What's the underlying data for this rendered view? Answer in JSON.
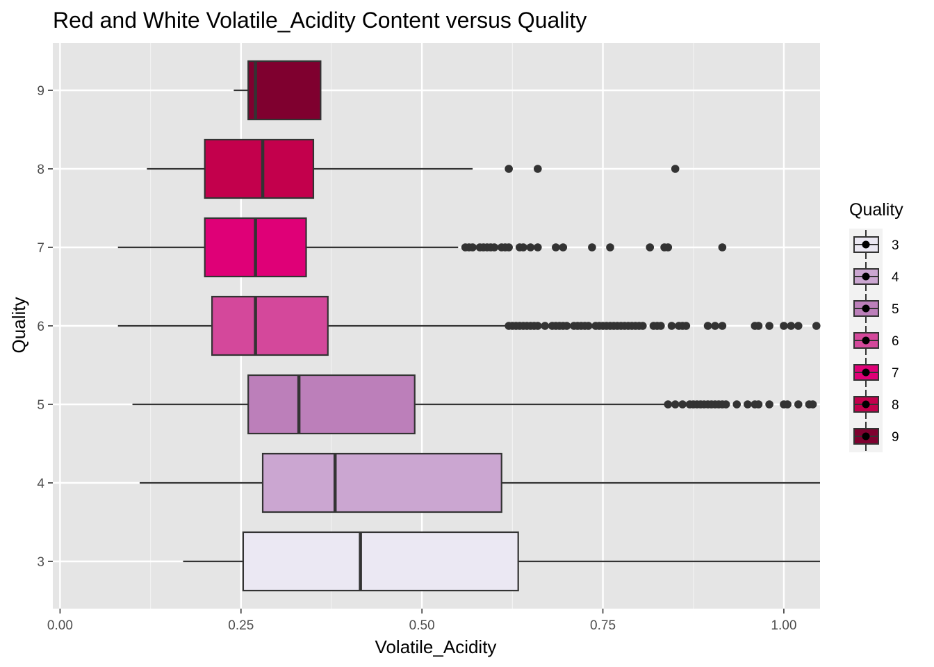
{
  "chart_data": {
    "type": "boxplot",
    "orientation": "horizontal",
    "title": "Red and White Volatile_Acidity Content versus Quality",
    "xlabel": "Volatile_Acidity",
    "ylabel": "Quality",
    "xlim": [
      -0.01,
      1.05
    ],
    "xticks": [
      0.0,
      0.25,
      0.5,
      0.75,
      1.0
    ],
    "xtick_labels": [
      "0.00",
      "0.25",
      "0.50",
      "0.75",
      "1.00"
    ],
    "grid": true,
    "legend": {
      "title": "Quality",
      "position": "right",
      "entries": [
        "3",
        "4",
        "5",
        "6",
        "7",
        "8",
        "9"
      ]
    },
    "categories": [
      "3",
      "4",
      "5",
      "6",
      "7",
      "8",
      "9"
    ],
    "series": [
      {
        "name": "3",
        "color": "#ebe8f3",
        "whisker_low": 0.17,
        "q1": 0.253,
        "median": 0.415,
        "q3": 0.633,
        "whisker_high": 1.05,
        "outliers": []
      },
      {
        "name": "4",
        "color": "#cba6d1",
        "whisker_low": 0.11,
        "q1": 0.28,
        "median": 0.38,
        "q3": 0.61,
        "whisker_high": 1.05,
        "outliers": []
      },
      {
        "name": "5",
        "color": "#bc7fba",
        "whisker_low": 0.1,
        "q1": 0.26,
        "median": 0.33,
        "q3": 0.49,
        "whisker_high": 0.84,
        "outliers": [
          0.84,
          0.85,
          0.86,
          0.87,
          0.875,
          0.88,
          0.885,
          0.89,
          0.895,
          0.9,
          0.905,
          0.91,
          0.915,
          0.92,
          0.935,
          0.95,
          0.96,
          0.965,
          0.98,
          1.0,
          1.005,
          1.02,
          1.035,
          1.04
        ]
      },
      {
        "name": "6",
        "color": "#d4489b",
        "whisker_low": 0.08,
        "q1": 0.21,
        "median": 0.27,
        "q3": 0.37,
        "whisker_high": 0.615,
        "outliers": [
          0.62,
          0.625,
          0.63,
          0.635,
          0.64,
          0.645,
          0.65,
          0.655,
          0.66,
          0.67,
          0.68,
          0.685,
          0.69,
          0.695,
          0.7,
          0.71,
          0.715,
          0.72,
          0.725,
          0.73,
          0.74,
          0.745,
          0.75,
          0.755,
          0.76,
          0.765,
          0.77,
          0.775,
          0.78,
          0.785,
          0.79,
          0.795,
          0.8,
          0.805,
          0.82,
          0.825,
          0.83,
          0.845,
          0.855,
          0.86,
          0.865,
          0.895,
          0.905,
          0.915,
          0.96,
          0.965,
          0.98,
          1.0,
          1.01,
          1.02,
          1.045
        ]
      },
      {
        "name": "7",
        "color": "#df0077",
        "whisker_low": 0.08,
        "q1": 0.2,
        "median": 0.27,
        "q3": 0.34,
        "whisker_high": 0.55,
        "outliers": [
          0.56,
          0.565,
          0.57,
          0.58,
          0.585,
          0.59,
          0.595,
          0.6,
          0.61,
          0.615,
          0.62,
          0.635,
          0.64,
          0.65,
          0.66,
          0.685,
          0.695,
          0.735,
          0.76,
          0.815,
          0.835,
          0.84,
          0.915
        ]
      },
      {
        "name": "8",
        "color": "#c3004c",
        "whisker_low": 0.12,
        "q1": 0.2,
        "median": 0.28,
        "q3": 0.35,
        "whisker_high": 0.57,
        "outliers": [
          0.62,
          0.66,
          0.85
        ]
      },
      {
        "name": "9",
        "color": "#7f002f",
        "whisker_low": 0.24,
        "q1": 0.26,
        "median": 0.27,
        "q3": 0.36,
        "whisker_high": 0.36,
        "outliers": []
      }
    ]
  }
}
